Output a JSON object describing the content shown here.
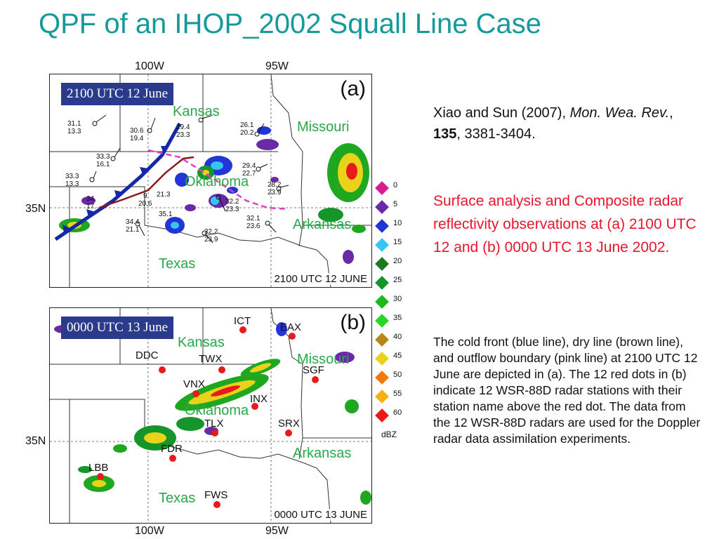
{
  "title": "QPF of an IHOP_2002 Squall Line Case",
  "axes": {
    "top_lon_1": "100W",
    "top_lon_2": "95W",
    "bottom_lon_1": "100W",
    "bottom_lon_2": "95W",
    "lat_a": "35N",
    "lat_b": "35N"
  },
  "panel_a": {
    "badge": "2100 UTC 12 June",
    "letter": "(a)",
    "stamp": "2100 UTC 12 JUNE",
    "states": {
      "kansas": "Kansas",
      "missouri": "Missouri",
      "oklahoma": "Oklahoma",
      "arkansas": "Arkansas",
      "texas": "Texas"
    },
    "obs": [
      "31.1\n13.3",
      "30.6\n19.4",
      "29.4\n23.3",
      "26.1\n20.2",
      "33.3\n16.1",
      "29.4\n22.7",
      "33.3\n13.3",
      "28.2\n23.9",
      "34.\n17.",
      "9\n20.6",
      "21.3",
      "32.2\n23.3",
      "34.4\n21.1",
      "35.1",
      "32.1\n23.6",
      "32.2\n23.9"
    ]
  },
  "panel_b": {
    "badge": "0000 UTC 13 June",
    "letter": "(b)",
    "stamp": "0000 UTC 13 JUNE",
    "states": {
      "kansas": "Kansas",
      "missouri": "Missouri",
      "oklahoma": "Oklahoma",
      "arkansas": "Arkansas",
      "texas": "Texas"
    },
    "stations": {
      "ict": "ICT",
      "eax": "EAX",
      "ddc": "DDC",
      "twx": "TWX",
      "sgf": "SGF",
      "vnx": "VNX",
      "inx": "INX",
      "tlx": "TLX",
      "srx": "SRX",
      "fdr": "FDR",
      "lbb": "LBB",
      "fws": "FWS"
    }
  },
  "legend": {
    "unit": "dBZ",
    "levels": [
      {
        "label": "0",
        "color": "#d61f8f"
      },
      {
        "label": "5",
        "color": "#6a2aa8"
      },
      {
        "label": "10",
        "color": "#2236d6"
      },
      {
        "label": "15",
        "color": "#36c6f2"
      },
      {
        "label": "20",
        "color": "#1f7a1f"
      },
      {
        "label": "25",
        "color": "#16962a"
      },
      {
        "label": "30",
        "color": "#1cb81c"
      },
      {
        "label": "35",
        "color": "#2ad42a"
      },
      {
        "label": "40",
        "color": "#b8861a"
      },
      {
        "label": "45",
        "color": "#e8d21a"
      },
      {
        "label": "50",
        "color": "#f07a12"
      },
      {
        "label": "55",
        "color": "#f5b012"
      },
      {
        "label": "60",
        "color": "#e81a1a"
      }
    ]
  },
  "citation": {
    "authors": "Xiao and Sun (2007), ",
    "journal": "Mon. Wea. Rev.",
    "sep": ", ",
    "volume": "135",
    "pages": ", 3381-3404."
  },
  "summary": "Surface analysis and Composite radar reflectivity observations at (a) 2100 UTC 12 and (b) 0000 UTC 13 June 2002.",
  "description": "The cold front (blue line), dry line (brown line), and outflow boundary (pink line) at 2100 UTC 12 June are depicted in (a). The 12 red dots in (b) indicate 12 WSR-88D radar stations with their station name above the red dot. The data from the 12 WSR-88D radars are used for the Doppler radar data assimilation experiments."
}
